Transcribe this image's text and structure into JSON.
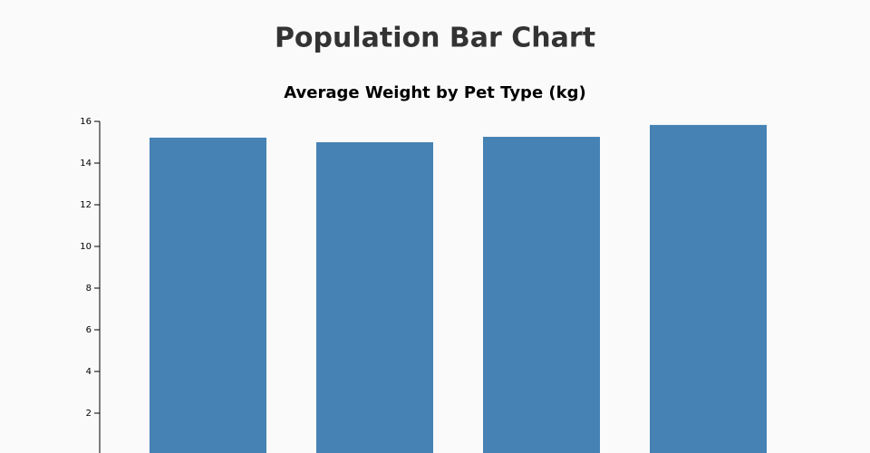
{
  "chart_data": {
    "type": "bar",
    "title": "Population Bar Chart",
    "subtitle": "Average Weight by Pet Type (kg)",
    "categories": [
      null,
      null,
      null,
      null
    ],
    "values": [
      15.22,
      15.0,
      15.26,
      15.83
    ],
    "color": "#4682b4",
    "ylim": [
      0,
      16
    ],
    "yticks": [
      2,
      4,
      6,
      8,
      10,
      12,
      14,
      16
    ]
  }
}
